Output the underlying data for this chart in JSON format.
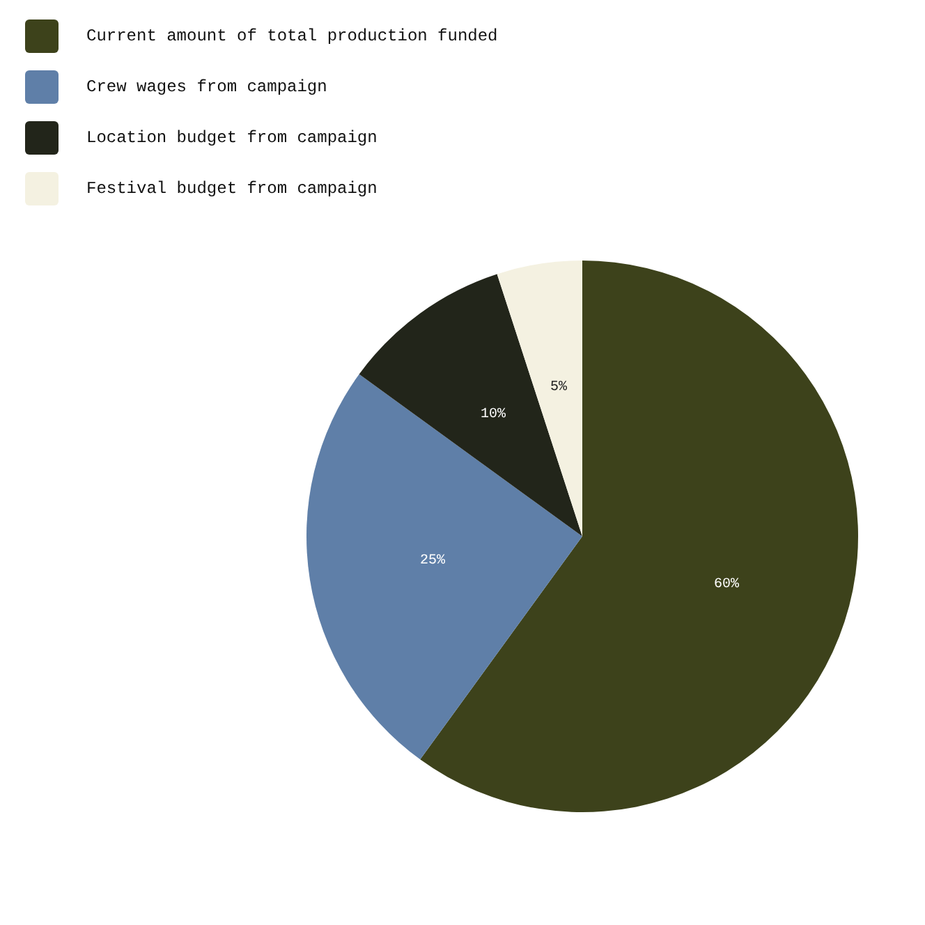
{
  "chart_data": {
    "type": "pie",
    "categories": [
      "Current amount of total production funded",
      "Crew wages from campaign",
      "Location budget from campaign",
      "Festival budget from campaign"
    ],
    "values": [
      60,
      25,
      10,
      5
    ],
    "colors": [
      "#3d421b",
      "#5f7fa8",
      "#22251a",
      "#f4f1e1"
    ],
    "value_labels": [
      "60%",
      "25%",
      "10%",
      "5%"
    ],
    "legend": "top left"
  }
}
